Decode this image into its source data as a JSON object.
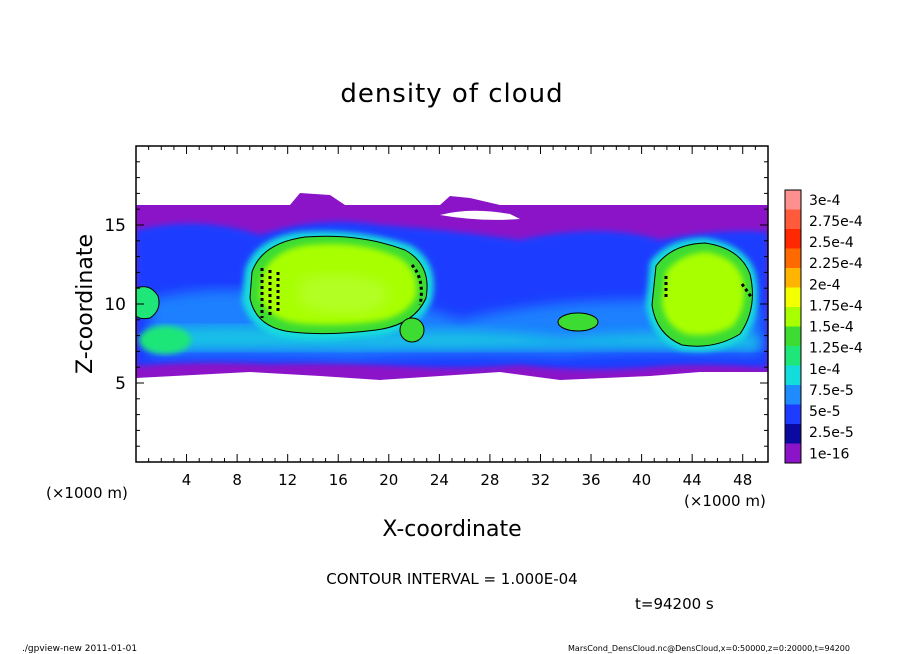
{
  "chart_data": {
    "type": "heatmap",
    "title": "density of cloud",
    "xlabel": "X-coordinate",
    "ylabel": "Z-coordinate",
    "x_unit": "(×1000 m)",
    "y_unit": "(×1000 m)",
    "xlim": [
      0,
      50
    ],
    "ylim": [
      0,
      20
    ],
    "x_ticks": [
      "4",
      "8",
      "12",
      "16",
      "20",
      "24",
      "28",
      "32",
      "36",
      "40",
      "44",
      "48"
    ],
    "y_ticks": [
      "5",
      "10",
      "15"
    ],
    "colorbar": {
      "labels": [
        "3e-4",
        "2.75e-4",
        "2.5e-4",
        "2.25e-4",
        "2e-4",
        "1.75e-4",
        "1.5e-4",
        "1.25e-4",
        "1e-4",
        "7.5e-5",
        "5e-5",
        "2.5e-5",
        "1e-16"
      ],
      "colors": [
        "#ff9090",
        "#ff5a3c",
        "#ff2800",
        "#ff6a00",
        "#ffb400",
        "#f4ff00",
        "#a8ff00",
        "#3cdc32",
        "#1ee678",
        "#14dcdc",
        "#1e8cff",
        "#1e3cff",
        "#0a0aa0",
        "#8c14c8"
      ]
    },
    "cloud_regions": [
      {
        "name": "left-edge",
        "x": [
          0,
          3
        ],
        "z": [
          9.5,
          11
        ],
        "peak": "1.25e-4"
      },
      {
        "name": "large-cloud",
        "x": [
          9,
          23
        ],
        "z": [
          7.5,
          14.5
        ],
        "peak": "1.5e-4"
      },
      {
        "name": "right-cloud",
        "x": [
          40.5,
          48.5
        ],
        "z": [
          7,
          13.5
        ],
        "peak": "1.5e-4"
      }
    ],
    "cloud_layer_z": [
      5.5,
      16.3
    ],
    "contour_interval": "CONTOUR INTERVAL = 1.000E-04",
    "time": "t=94200 s"
  },
  "footer": {
    "left": "./gpview-new   2011-01-01",
    "right": "MarsCond_DensCloud.nc@DensCloud,x=0:50000,z=0:20000,t=94200"
  }
}
